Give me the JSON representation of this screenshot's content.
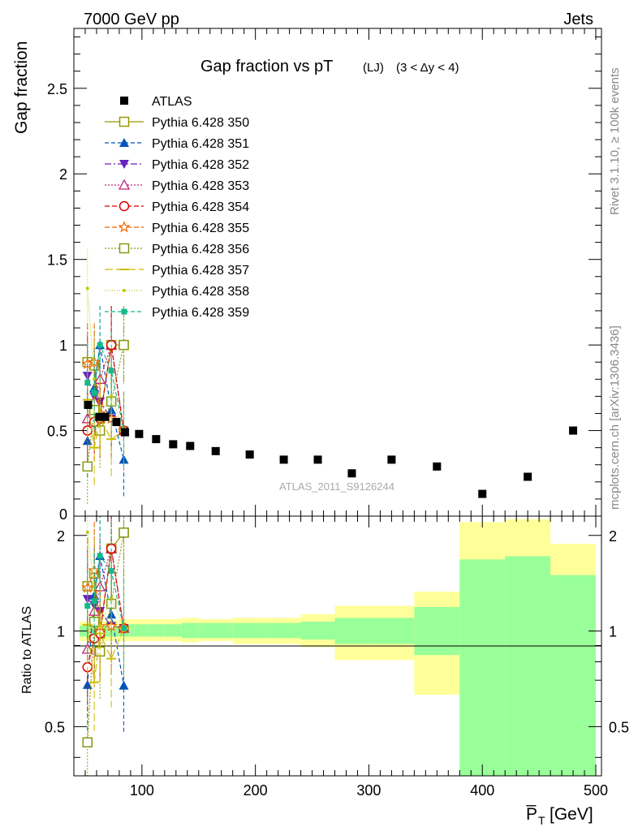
{
  "header": {
    "left": "7000 GeV pp",
    "right": "Jets"
  },
  "side_labels": {
    "rivet": "Rivet 3.1.10, ≥ 100k events",
    "source": "mcplots.cern.ch [arXiv:1306.3436]"
  },
  "colors": {
    "data": "#000000",
    "band_inner": "#99ff99",
    "band_outer": "#ffff99",
    "s350": "#999900",
    "s351": "#0055bb",
    "s352": "#6622bb",
    "s353": "#bb2277",
    "s354": "#dd0000",
    "s355": "#ee6600",
    "s356": "#889911",
    "s357": "#ccbb00",
    "s358": "#bbcc00",
    "s359": "#11bb88"
  },
  "chart_data": [
    {
      "type": "scatter",
      "title": "Gap fraction vs pT",
      "title_sub": "(LJ)",
      "title_cut": "(3 < Δy < 4)",
      "ylabel": "Gap fraction",
      "watermark": "ATLAS_2011_S9126244",
      "xlim": [
        40,
        505
      ],
      "ylim": [
        0,
        2.85
      ],
      "yticks": [
        0.5,
        1,
        1.5,
        2,
        2.5
      ],
      "ytick_labels": [
        "0.5",
        "1",
        "1.5",
        "2",
        "2.5"
      ],
      "ytick_zero_label": "0",
      "data": {
        "name": "ATLAS",
        "x": [
          52.5,
          62.5,
          67.5,
          77.5,
          85,
          97.5,
          112.5,
          127.5,
          142.5,
          165,
          195,
          225,
          255,
          285,
          320,
          360,
          400,
          440,
          480
        ],
        "y": [
          0.65,
          0.58,
          0.58,
          0.55,
          0.49,
          0.48,
          0.45,
          0.42,
          0.41,
          0.38,
          0.36,
          0.33,
          0.33,
          0.25,
          0.33,
          0.29,
          0.13,
          0.23,
          0.5
        ]
      },
      "series": [
        {
          "name": "Pythia 6.428 350",
          "color_key": "s350",
          "marker": "square-open",
          "dash": "",
          "x": [
            52,
            58,
            63,
            73,
            84
          ],
          "y": [
            0.9,
            0.88,
            0.57,
            1.0,
            1.0
          ]
        },
        {
          "name": "Pythia 6.428 351",
          "color_key": "s351",
          "marker": "triangle-filled",
          "dash": "5,3",
          "x": [
            52,
            58,
            63,
            73,
            84
          ],
          "y": [
            0.44,
            0.75,
            1.0,
            0.62,
            0.33
          ]
        },
        {
          "name": "Pythia 6.428 352",
          "color_key": "s352",
          "marker": "triangle-down-filled",
          "dash": "8,3,2,3",
          "x": [
            52,
            58,
            63,
            73,
            84
          ],
          "y": [
            0.82,
            0.7,
            0.67,
            0.57,
            0.5
          ]
        },
        {
          "name": "Pythia 6.428 353",
          "color_key": "s353",
          "marker": "triangle-open",
          "dash": "2,2",
          "x": [
            52,
            58,
            63,
            73,
            84
          ],
          "y": [
            0.57,
            0.67,
            0.8,
            1.0,
            0.5
          ]
        },
        {
          "name": "Pythia 6.428 354",
          "color_key": "s354",
          "marker": "circle-open",
          "dash": "6,3",
          "x": [
            52,
            58,
            63,
            73,
            84
          ],
          "y": [
            0.5,
            0.55,
            0.57,
            1.0,
            0.5
          ]
        },
        {
          "name": "Pythia 6.428 355",
          "color_key": "s355",
          "marker": "star-open",
          "dash": "6,3",
          "x": [
            52,
            58,
            63,
            73,
            84
          ],
          "y": [
            0.89,
            0.9,
            0.6,
            0.57,
            0.5
          ]
        },
        {
          "name": "Pythia 6.428 356",
          "color_key": "s356",
          "marker": "square-open",
          "dash": "2,2",
          "x": [
            52,
            58,
            63,
            73,
            84
          ],
          "y": [
            0.29,
            0.62,
            0.5,
            0.67,
            1.0
          ]
        },
        {
          "name": "Pythia 6.428 357",
          "color_key": "s357",
          "marker": "dash",
          "dash": "10,4",
          "x": [
            52,
            58,
            63,
            73,
            84
          ],
          "y": [
            0.68,
            0.4,
            0.57,
            0.45,
            0.5
          ]
        },
        {
          "name": "Pythia 6.428 358",
          "color_key": "s358",
          "marker": "dot",
          "dash": "1,2",
          "x": [
            52,
            58,
            63,
            73,
            84
          ],
          "y": [
            1.33,
            0.8,
            0.6,
            0.7,
            0.5
          ]
        },
        {
          "name": "Pythia 6.428 359",
          "color_key": "s359",
          "marker": "square-small",
          "dash": "5,3",
          "x": [
            52,
            58,
            63,
            73,
            84
          ],
          "y": [
            0.78,
            0.72,
            1.0,
            0.85,
            0.5
          ]
        }
      ]
    },
    {
      "type": "band",
      "ylabel": "Ratio to ATLAS",
      "xlabel": "P̅",
      "xlabel_sub": "T",
      "xlabel_unit": "[GeV]",
      "xlim": [
        40,
        505
      ],
      "ylim": [
        0.35,
        2.3
      ],
      "xticks": [
        100,
        200,
        300,
        400,
        500
      ],
      "xtick_labels": [
        "100",
        "200",
        "300",
        "400",
        "500"
      ],
      "yticks": [
        0.5,
        1,
        2
      ],
      "ytick_labels": [
        "0.5",
        "1",
        "2"
      ],
      "bands": [
        {
          "x0": 45,
          "x1": 60,
          "inner": [
            0.96,
            1.04
          ],
          "outer": [
            0.93,
            1.07
          ]
        },
        {
          "x0": 60,
          "x1": 70,
          "inner": [
            0.96,
            1.04
          ],
          "outer": [
            0.93,
            1.07
          ]
        },
        {
          "x0": 70,
          "x1": 80,
          "inner": [
            0.96,
            1.04
          ],
          "outer": [
            0.93,
            1.08
          ]
        },
        {
          "x0": 80,
          "x1": 90,
          "inner": [
            0.96,
            1.05
          ],
          "outer": [
            0.93,
            1.09
          ]
        },
        {
          "x0": 90,
          "x1": 105,
          "inner": [
            0.96,
            1.05
          ],
          "outer": [
            0.93,
            1.09
          ]
        },
        {
          "x0": 105,
          "x1": 120,
          "inner": [
            0.96,
            1.05
          ],
          "outer": [
            0.93,
            1.09
          ]
        },
        {
          "x0": 120,
          "x1": 135,
          "inner": [
            0.96,
            1.05
          ],
          "outer": [
            0.93,
            1.09
          ]
        },
        {
          "x0": 135,
          "x1": 150,
          "inner": [
            0.95,
            1.06
          ],
          "outer": [
            0.92,
            1.1
          ]
        },
        {
          "x0": 150,
          "x1": 180,
          "inner": [
            0.95,
            1.06
          ],
          "outer": [
            0.93,
            1.09
          ]
        },
        {
          "x0": 180,
          "x1": 210,
          "inner": [
            0.95,
            1.06
          ],
          "outer": [
            0.91,
            1.1
          ]
        },
        {
          "x0": 210,
          "x1": 240,
          "inner": [
            0.95,
            1.06
          ],
          "outer": [
            0.91,
            1.1
          ]
        },
        {
          "x0": 240,
          "x1": 270,
          "inner": [
            0.94,
            1.07
          ],
          "outer": [
            0.89,
            1.13
          ]
        },
        {
          "x0": 270,
          "x1": 300,
          "inner": [
            0.91,
            1.1
          ],
          "outer": [
            0.81,
            1.2
          ]
        },
        {
          "x0": 300,
          "x1": 340,
          "inner": [
            0.91,
            1.1
          ],
          "outer": [
            0.81,
            1.2
          ]
        },
        {
          "x0": 340,
          "x1": 380,
          "inner": [
            0.84,
            1.19
          ],
          "outer": [
            0.63,
            1.33
          ]
        },
        {
          "x0": 380,
          "x1": 420,
          "inner": [
            0.35,
            1.68
          ],
          "outer": [
            0.35,
            2.2
          ]
        },
        {
          "x0": 420,
          "x1": 460,
          "inner": [
            0.35,
            1.72
          ],
          "outer": [
            0.35,
            2.25
          ]
        },
        {
          "x0": 460,
          "x1": 500,
          "inner": [
            0.35,
            1.5
          ],
          "outer": [
            0.35,
            1.88
          ]
        }
      ]
    }
  ]
}
